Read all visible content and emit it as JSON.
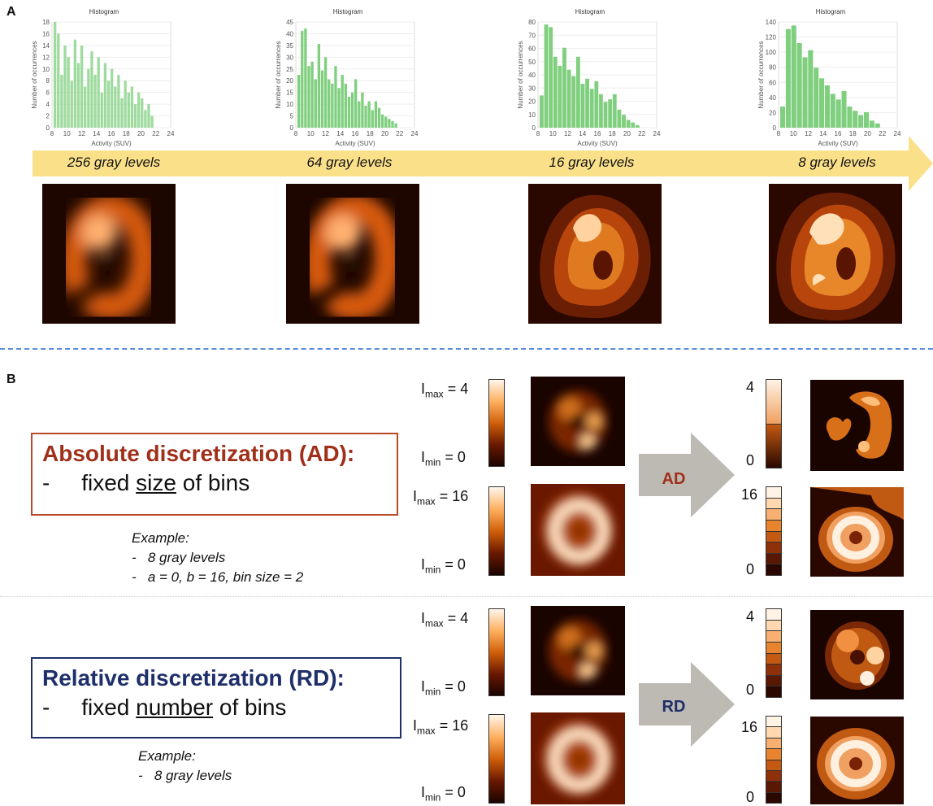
{
  "panel_a": {
    "label": "A",
    "hist_title": "Histogram",
    "ylabel": "Number of occurrences",
    "xlabel": "Activity (SUV)",
    "xticks": [
      "8",
      "10",
      "12",
      "14",
      "16",
      "18",
      "20",
      "22",
      "24"
    ],
    "bar_color": "#7fcf7f",
    "arrow_color": "#fbe08a",
    "histograms": [
      {
        "gray_levels": "256 gray levels",
        "yticks": [
          "0",
          "2",
          "4",
          "6",
          "8",
          "10",
          "12",
          "14",
          "16",
          "18"
        ],
        "ymax": 18,
        "values": [
          18,
          16,
          9,
          14,
          12,
          8,
          15,
          11,
          14,
          7,
          10,
          13,
          9,
          12,
          6,
          11,
          8,
          10,
          7,
          9,
          5,
          8,
          6,
          7,
          4,
          6,
          5,
          3,
          4,
          2
        ]
      },
      {
        "gray_levels": "64 gray levels",
        "yticks": [
          "0",
          "5",
          "10",
          "15",
          "20",
          "25",
          "30",
          "35",
          "40",
          "45"
        ],
        "ymax": 48,
        "values": [
          24,
          44,
          45,
          28,
          30,
          22,
          38,
          26,
          32,
          22,
          20,
          28,
          18,
          24,
          20,
          14,
          16,
          22,
          12,
          16,
          10,
          12,
          8,
          12,
          9,
          6,
          5,
          4,
          3,
          2
        ]
      },
      {
        "gray_levels": "16 gray levels",
        "yticks": [
          "0",
          "10",
          "20",
          "30",
          "40",
          "50",
          "60",
          "70",
          "80"
        ],
        "ymax": 82,
        "values": [
          25,
          80,
          78,
          55,
          48,
          62,
          45,
          40,
          55,
          34,
          38,
          30,
          36,
          26,
          20,
          22,
          26,
          14,
          10,
          6,
          4,
          2
        ]
      },
      {
        "gray_levels": "8 gray levels",
        "yticks": [
          "0",
          "20",
          "40",
          "60",
          "80",
          "100",
          "120",
          "140"
        ],
        "ymax": 150,
        "values": [
          30,
          140,
          145,
          120,
          100,
          110,
          85,
          70,
          60,
          48,
          40,
          52,
          30,
          24,
          18,
          22,
          10,
          6
        ]
      }
    ]
  },
  "panel_b": {
    "label": "B",
    "ad_box": {
      "title": "Absolute discretization (AD):",
      "dash": "-",
      "pre": "fixed ",
      "underlined": "size",
      "post": " of bins",
      "color": "#a0301a"
    },
    "ad_example": {
      "title": "Example:",
      "lines": [
        "8 gray levels",
        "a = 0, b = 16, bin size = 2"
      ]
    },
    "rd_box": {
      "title": "Relative discretization (RD):",
      "dash": "-",
      "pre": "fixed ",
      "underlined": "number",
      "post": " of bins",
      "color": "#1e2f6a"
    },
    "rd_example": {
      "title": "Example:",
      "lines": [
        "8 gray levels"
      ]
    },
    "arrows": {
      "ad": "AD",
      "rd": "RD"
    },
    "limits": {
      "imax4": "4",
      "imax16": "16",
      "imin": "0",
      "I": "I",
      "max": "max",
      "min": "min",
      "eq": " = "
    },
    "ticks": {
      "four": "4",
      "sixteen": "16",
      "zero": "0"
    }
  }
}
